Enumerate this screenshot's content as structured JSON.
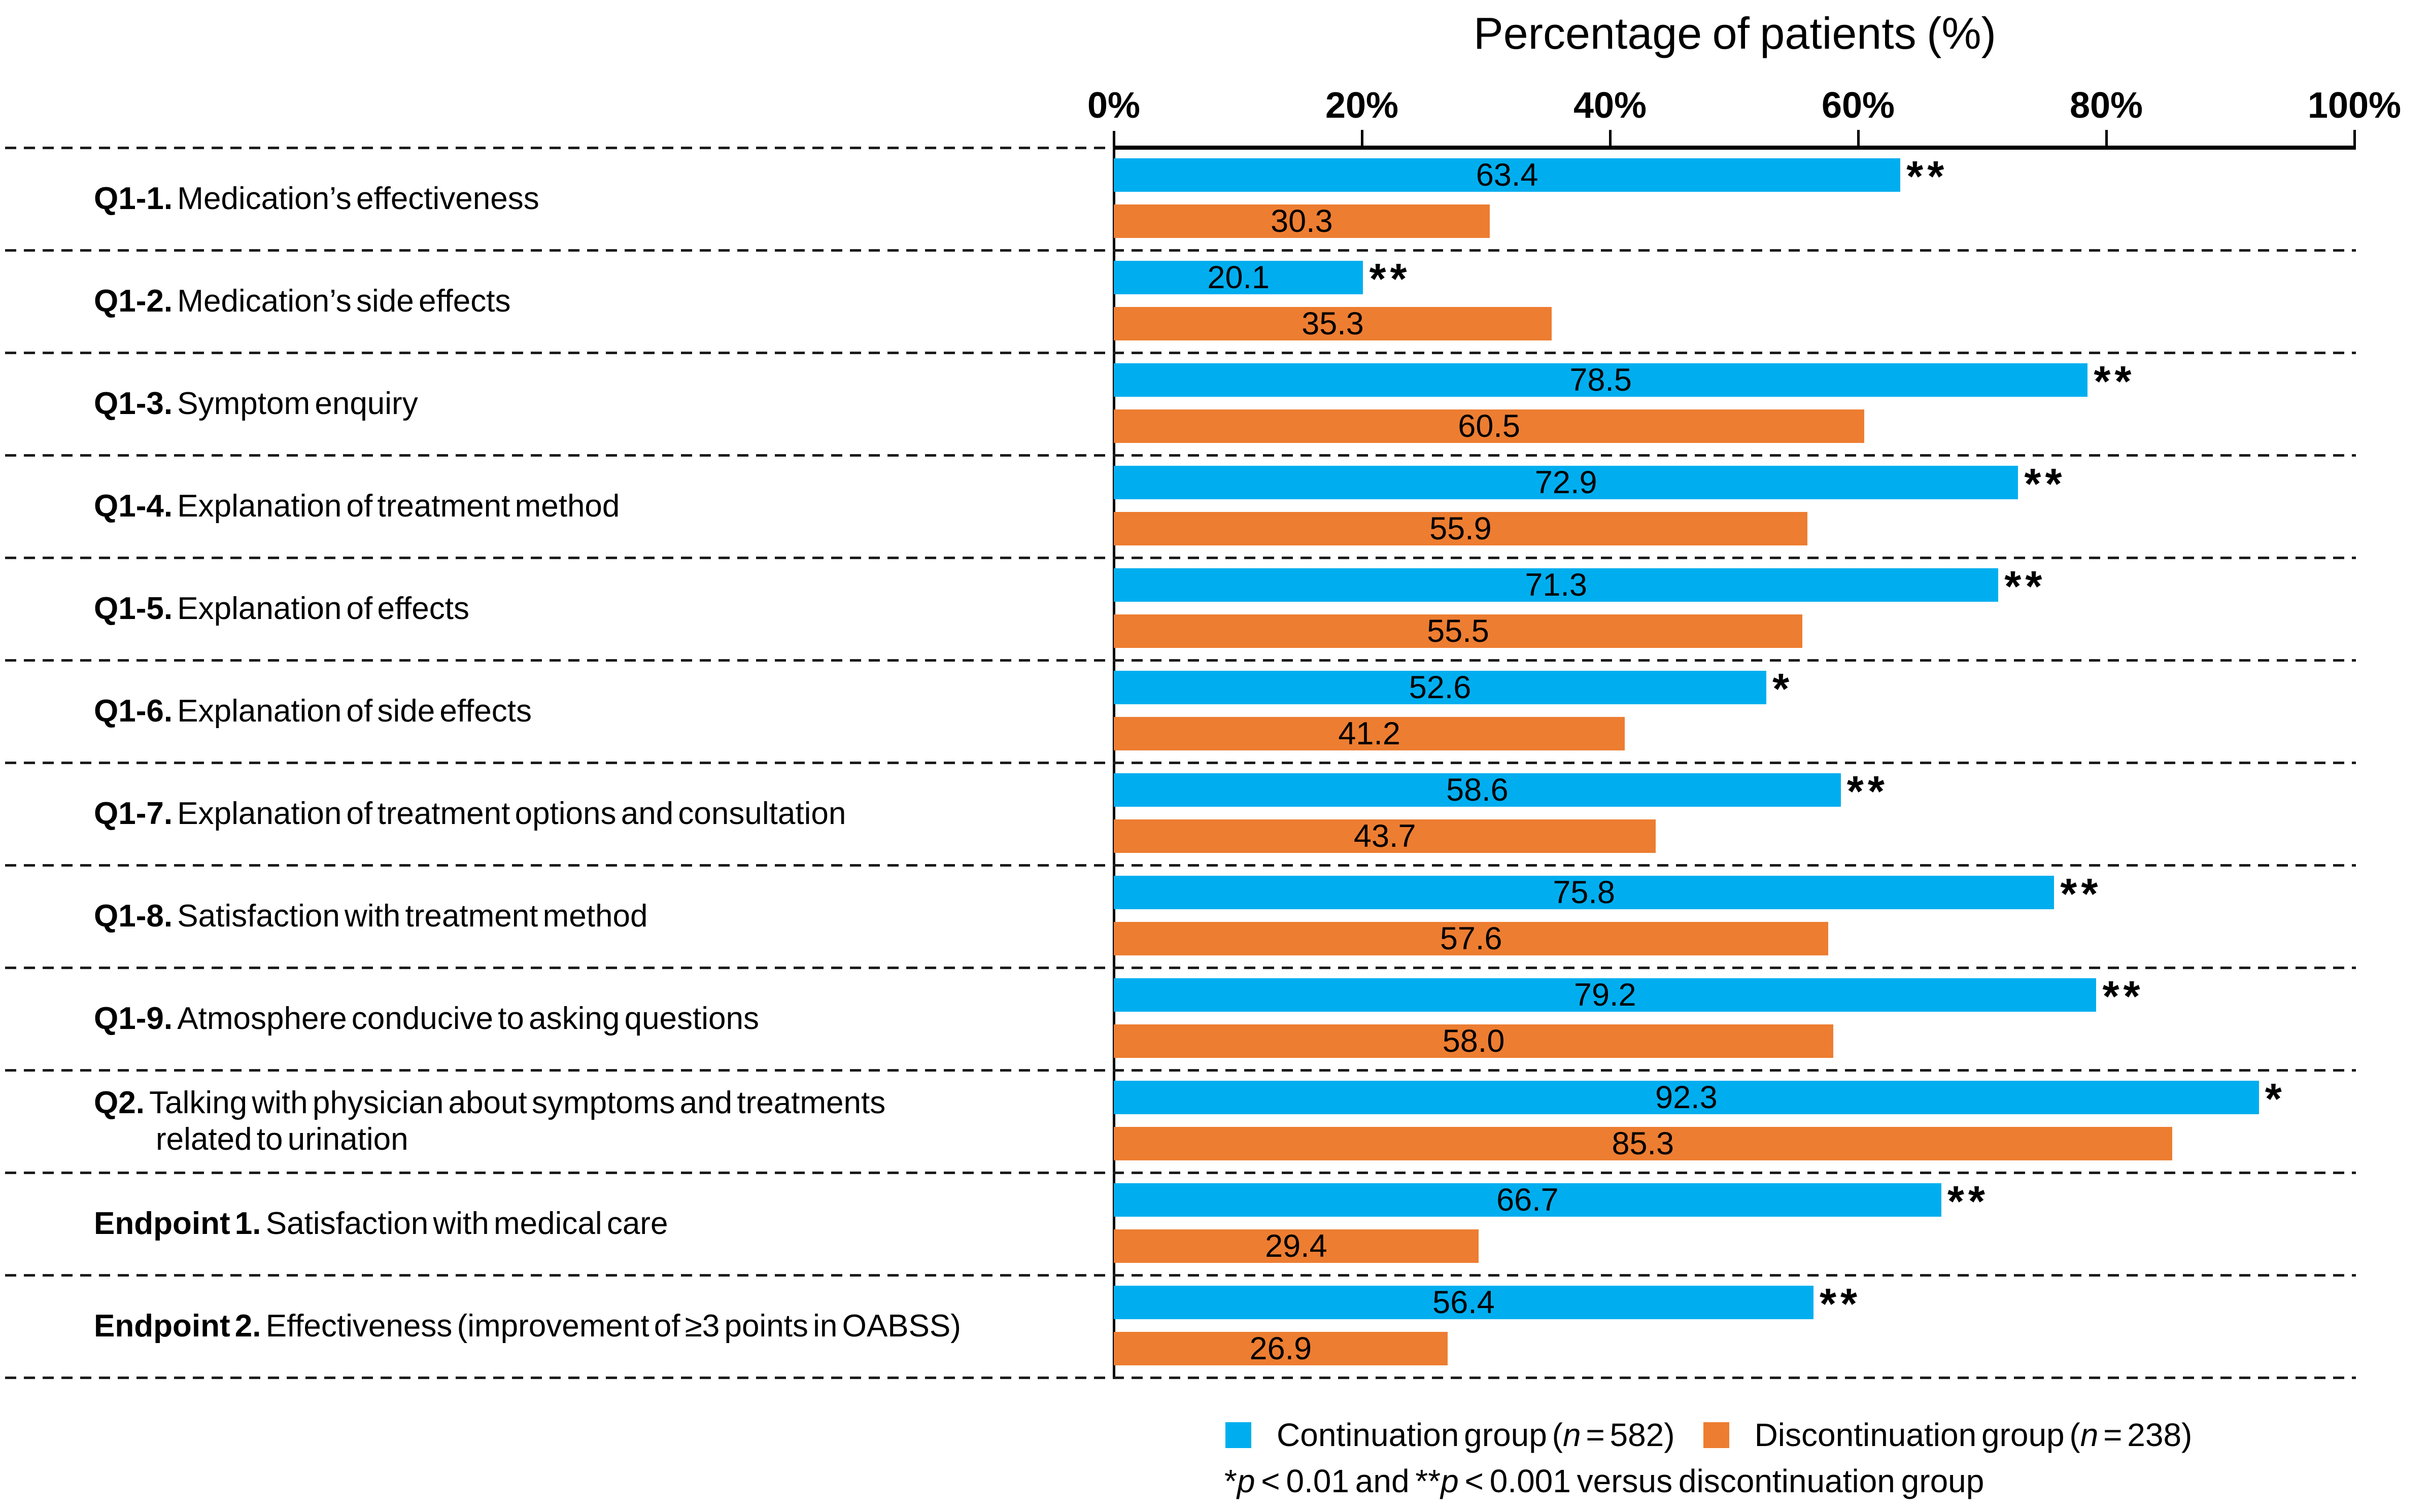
{
  "chart_data": {
    "type": "bar",
    "orientation": "horizontal",
    "title": "Percentage of patients (%)",
    "xlabel": "Percentage of patients (%)",
    "xlim": [
      0,
      100
    ],
    "x_ticks": [
      "0%",
      "20%",
      "40%",
      "60%",
      "80%",
      "100%"
    ],
    "grid": "dashed horizontal row separators",
    "legend_position": "bottom",
    "categories": [
      {
        "prefix": "Q1-1.",
        "lines": [
          "Medication’s effectiveness"
        ]
      },
      {
        "prefix": "Q1-2.",
        "lines": [
          "Medication’s side effects"
        ]
      },
      {
        "prefix": "Q1-3.",
        "lines": [
          "Symptom enquiry"
        ]
      },
      {
        "prefix": "Q1-4.",
        "lines": [
          "Explanation of treatment method"
        ]
      },
      {
        "prefix": "Q1-5.",
        "lines": [
          "Explanation of effects"
        ]
      },
      {
        "prefix": "Q1-6.",
        "lines": [
          "Explanation of side effects"
        ]
      },
      {
        "prefix": "Q1-7.",
        "lines": [
          "Explanation of treatment options and consultation"
        ]
      },
      {
        "prefix": "Q1-8.",
        "lines": [
          "Satisfaction with treatment method"
        ]
      },
      {
        "prefix": "Q1-9.",
        "lines": [
          "Atmosphere conducive to asking questions"
        ]
      },
      {
        "prefix": "Q2.",
        "lines": [
          "Talking with physician about symptoms and treatments",
          "related to urination"
        ]
      },
      {
        "prefix": "Endpoint 1.",
        "lines": [
          "Satisfaction with medical care"
        ]
      },
      {
        "prefix": "Endpoint 2.",
        "lines": [
          "Effectiveness (improvement of ≥3 points in OABSS)"
        ]
      }
    ],
    "series": [
      {
        "name": "Continuation group (n = 582)",
        "color": "#00AEEF",
        "values": [
          63.4,
          20.1,
          78.5,
          72.9,
          71.3,
          52.6,
          58.6,
          75.8,
          79.2,
          92.3,
          66.7,
          56.4
        ],
        "labels": [
          "63.4",
          "20.1",
          "78.5",
          "72.9",
          "71.3",
          "52.6",
          "58.6",
          "75.8",
          "79.2",
          "92.3",
          "66.7",
          "56.4"
        ],
        "significance": [
          "**",
          "**",
          "**",
          "**",
          "**",
          "*",
          "**",
          "**",
          "**",
          "*",
          "**",
          "**"
        ]
      },
      {
        "name": "Discontinuation group (n = 238)",
        "color": "#ED7D31",
        "values": [
          30.3,
          35.3,
          60.5,
          55.9,
          55.5,
          41.2,
          43.7,
          57.6,
          58.0,
          85.3,
          29.4,
          26.9
        ],
        "labels": [
          "30.3",
          "35.3",
          "60.5",
          "55.9",
          "55.5",
          "41.2",
          "43.7",
          "57.6",
          "58.0",
          "85.3",
          "29.4",
          "26.9"
        ],
        "significance": [
          "",
          "",
          "",
          "",
          "",
          "",
          "",
          "",
          "",
          "",
          "",
          ""
        ]
      }
    ]
  },
  "legend": {
    "items": [
      {
        "swatch": "#00AEEF",
        "pre": "Continuation group (",
        "it": "n",
        "post": " = 582)"
      },
      {
        "swatch": "#ED7D31",
        "pre": "Discontinuation group (",
        "it": "n",
        "post": " = 238)"
      }
    ]
  },
  "footnote": {
    "parts": [
      {
        "t": "*"
      },
      {
        "t": "p",
        "i": true
      },
      {
        "t": " < 0.01 and **"
      },
      {
        "t": "p",
        "i": true
      },
      {
        "t": " < 0.001 versus discontinuation group"
      }
    ]
  }
}
